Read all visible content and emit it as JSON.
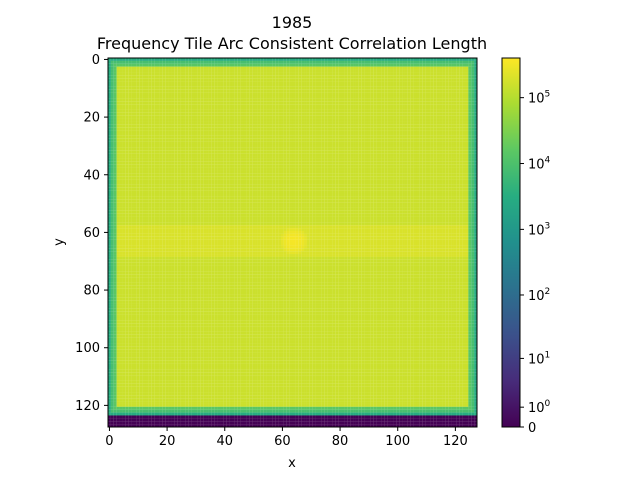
{
  "chart_data": {
    "type": "heatmap",
    "title": "1985",
    "subtitle": "Frequency Tile Arc Consistent Correlation Length",
    "xlabel": "x",
    "ylabel": "y",
    "xlim": [
      0,
      127
    ],
    "ylim": [
      127,
      0
    ],
    "x_ticks": [
      0,
      20,
      40,
      60,
      80,
      100,
      120
    ],
    "y_ticks": [
      0,
      20,
      40,
      60,
      80,
      100,
      120
    ],
    "grid": false,
    "colormap": "viridis",
    "colorbar": {
      "scale": "symlog",
      "range": [
        0,
        400000
      ],
      "ticks": [
        {
          "value": 0,
          "label": "0"
        },
        {
          "value": 1,
          "label": "10",
          "exp": "0"
        },
        {
          "value": 10,
          "label": "10",
          "exp": "1"
        },
        {
          "value": 100,
          "label": "10",
          "exp": "2"
        },
        {
          "value": 1000,
          "label": "10",
          "exp": "3"
        },
        {
          "value": 10000,
          "label": "10",
          "exp": "4"
        },
        {
          "value": 100000,
          "label": "10",
          "exp": "5"
        }
      ]
    },
    "field": {
      "grid_size": 128,
      "interior_value": 150000,
      "border_value_range": [
        3000,
        20000
      ],
      "edge_width": 3,
      "bottom_zero_rows": 4,
      "band_rows": [
        58,
        68
      ],
      "band_value": 200000,
      "peak_center": [
        64,
        63
      ],
      "peak_value": 350000
    }
  }
}
